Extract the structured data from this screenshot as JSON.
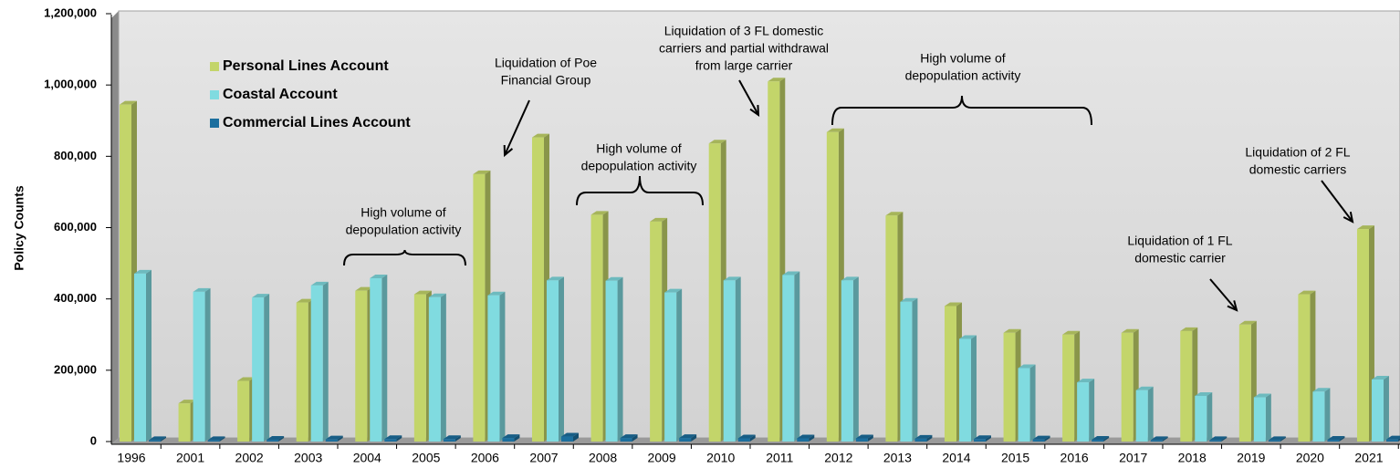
{
  "chart_data": {
    "type": "bar3d",
    "y_label": "Policy Counts",
    "categories": [
      "1996",
      "2001",
      "2002",
      "2003",
      "2004",
      "2005",
      "2006",
      "2007",
      "2008",
      "2009",
      "2010",
      "2011",
      "2012",
      "2013",
      "2014",
      "2015",
      "2016",
      "2017",
      "2018",
      "2019",
      "2020",
      "2021"
    ],
    "series": [
      {
        "name": "Personal Lines Account",
        "color": "#c3d56a",
        "values": [
          945000,
          107000,
          170000,
          390000,
          423000,
          413000,
          750000,
          853000,
          636000,
          617000,
          836000,
          1010000,
          868000,
          634000,
          380000,
          305000,
          300000,
          305000,
          310000,
          328000,
          413000,
          596000
        ]
      },
      {
        "name": "Coastal Account",
        "color": "#80dbe0",
        "values": [
          471000,
          420000,
          404000,
          438000,
          458000,
          405000,
          410000,
          452000,
          451000,
          418000,
          452000,
          467000,
          452000,
          392000,
          288000,
          206000,
          166000,
          144000,
          128000,
          124000,
          140000,
          174000
        ]
      },
      {
        "name": "Commercial Lines Account",
        "color": "#1c6f9e",
        "values": [
          4000,
          4000,
          5000,
          6000,
          7000,
          7000,
          10000,
          14000,
          10000,
          10000,
          9000,
          9000,
          9000,
          8000,
          7000,
          6000,
          5000,
          4000,
          4000,
          4000,
          5000,
          6000
        ]
      }
    ],
    "ylim": [
      0,
      1200000
    ],
    "yticks": [
      0,
      {
        "value": 200000,
        "label": "200,000"
      },
      {
        "value": 400000,
        "label": "400,000"
      },
      {
        "value": 600000,
        "label": "600,000"
      },
      {
        "value": 800000,
        "label": "800,000"
      },
      {
        "value": 1000000,
        "label": "1,000,000"
      },
      {
        "value": 1200000,
        "label": "1,200,000"
      }
    ],
    "legend": "upper left",
    "annotations": [
      {
        "lines": [
          "High volume of",
          "depopulation activity"
        ]
      },
      {
        "lines": [
          "Liquidation of Poe",
          "Financial Group"
        ]
      },
      {
        "lines": [
          "High volume of",
          "depopulation activity"
        ]
      },
      {
        "lines": [
          "Liquidation of 3 FL domestic",
          "carriers and partial withdrawal",
          "from large carrier"
        ]
      },
      {
        "lines": [
          "High volume of",
          "depopulation activity"
        ]
      },
      {
        "lines": [
          "Liquidation of 1 FL",
          "domestic carrier"
        ]
      },
      {
        "lines": [
          "Liquidation of 2 FL",
          "domestic carriers"
        ]
      }
    ]
  }
}
